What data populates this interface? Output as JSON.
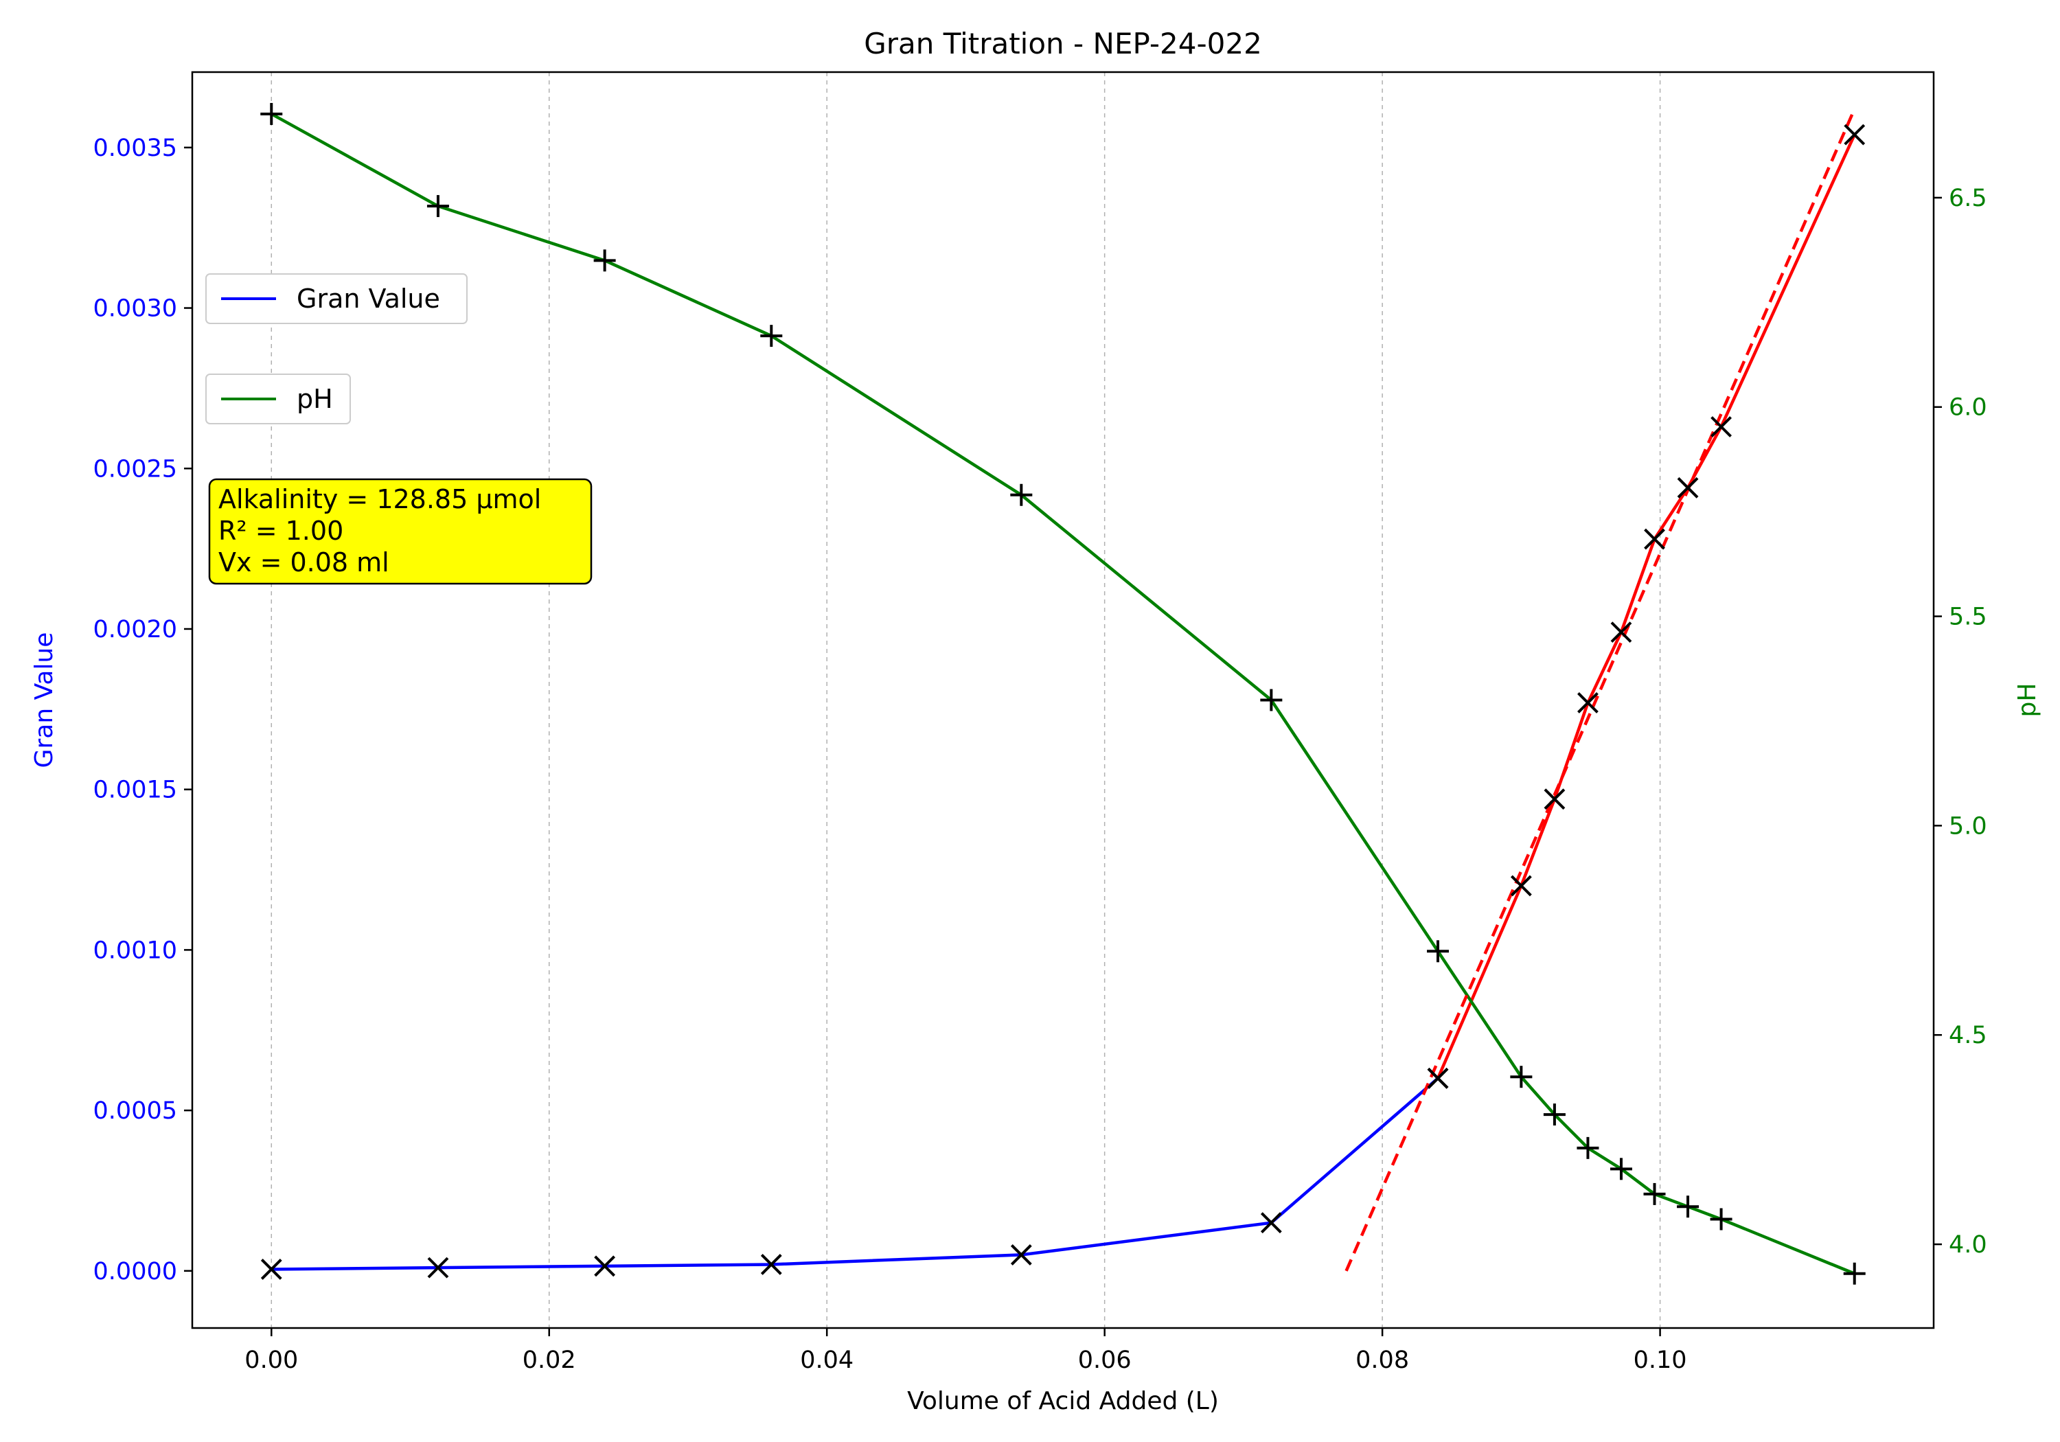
{
  "chart_data": {
    "type": "line",
    "title": "Gran Titration - NEP-24-022",
    "xlabel": "Volume of Acid Added (L)",
    "ylabel_left": "Gran Value",
    "ylabel_right": "pH",
    "xlim": [
      -0.0057,
      0.1197
    ],
    "ylim_left": [
      -0.000178,
      0.003735
    ],
    "ylim_right": [
      3.8,
      6.8
    ],
    "x_ticks": [
      "0.00",
      "0.02",
      "0.04",
      "0.06",
      "0.08",
      "0.10"
    ],
    "x_tick_values": [
      0.0,
      0.02,
      0.04,
      0.06,
      0.08,
      0.1
    ],
    "y_left_ticks": [
      "0.0000",
      "0.0005",
      "0.0010",
      "0.0015",
      "0.0020",
      "0.0025",
      "0.0030",
      "0.0035"
    ],
    "y_left_tick_values": [
      0.0,
      0.0005,
      0.001,
      0.0015,
      0.002,
      0.0025,
      0.003,
      0.0035
    ],
    "y_right_ticks": [
      "4.0",
      "4.5",
      "5.0",
      "5.5",
      "6.0",
      "6.5"
    ],
    "y_right_tick_values": [
      4.0,
      4.5,
      5.0,
      5.5,
      6.0,
      6.5
    ],
    "grid": "vertical dashed",
    "series": [
      {
        "name": "Gran Value",
        "axis": "left",
        "color": "#0000ff",
        "marker": "x",
        "x": [
          0.0,
          0.012,
          0.024,
          0.036,
          0.054,
          0.072,
          0.084
        ],
        "y": [
          5e-06,
          1e-05,
          1.5e-05,
          2e-05,
          5e-05,
          0.00015,
          0.0006
        ]
      },
      {
        "name": "",
        "axis": "left",
        "color": "#ff0000",
        "marker": "x",
        "x": [
          0.084,
          0.09,
          0.0924,
          0.0948,
          0.0972,
          0.0996,
          0.102,
          0.1044,
          0.114
        ],
        "y": [
          0.0006,
          0.0012,
          0.00147,
          0.00177,
          0.00199,
          0.00228,
          0.00244,
          0.00263,
          0.00354
        ]
      },
      {
        "name": "pH",
        "axis": "right",
        "color": "#008000",
        "marker": "+",
        "x": [
          0.0,
          0.012,
          0.024,
          0.036,
          0.054,
          0.072,
          0.084,
          0.09,
          0.0924,
          0.0948,
          0.0972,
          0.0996,
          0.102,
          0.1044,
          0.114
        ],
        "y": [
          6.7,
          6.48,
          6.35,
          6.17,
          5.79,
          5.3,
          4.7,
          4.4,
          4.31,
          4.23,
          4.18,
          4.12,
          4.09,
          4.06,
          3.93
        ]
      }
    ],
    "fit_line": {
      "color": "#ff0000",
      "style": "dashed",
      "axis": "left",
      "x": [
        0.0774,
        0.114
      ],
      "y": [
        0.0,
        0.00362
      ]
    },
    "legends": [
      {
        "label": "Gran Value",
        "color": "#0000ff",
        "placement": "upper-left"
      },
      {
        "label": "pH",
        "color": "#008000",
        "placement": "upper-left"
      }
    ],
    "annotation": {
      "lines": [
        "Alkalinity = 128.85 µmol",
        "R² = 1.00",
        "Vx = 0.08 ml"
      ],
      "background": "#ffff00"
    },
    "colors": {
      "left_axis": "#0000ff",
      "right_axis": "#008000",
      "marker": "#000000",
      "grid": "#b0b0b0"
    }
  }
}
